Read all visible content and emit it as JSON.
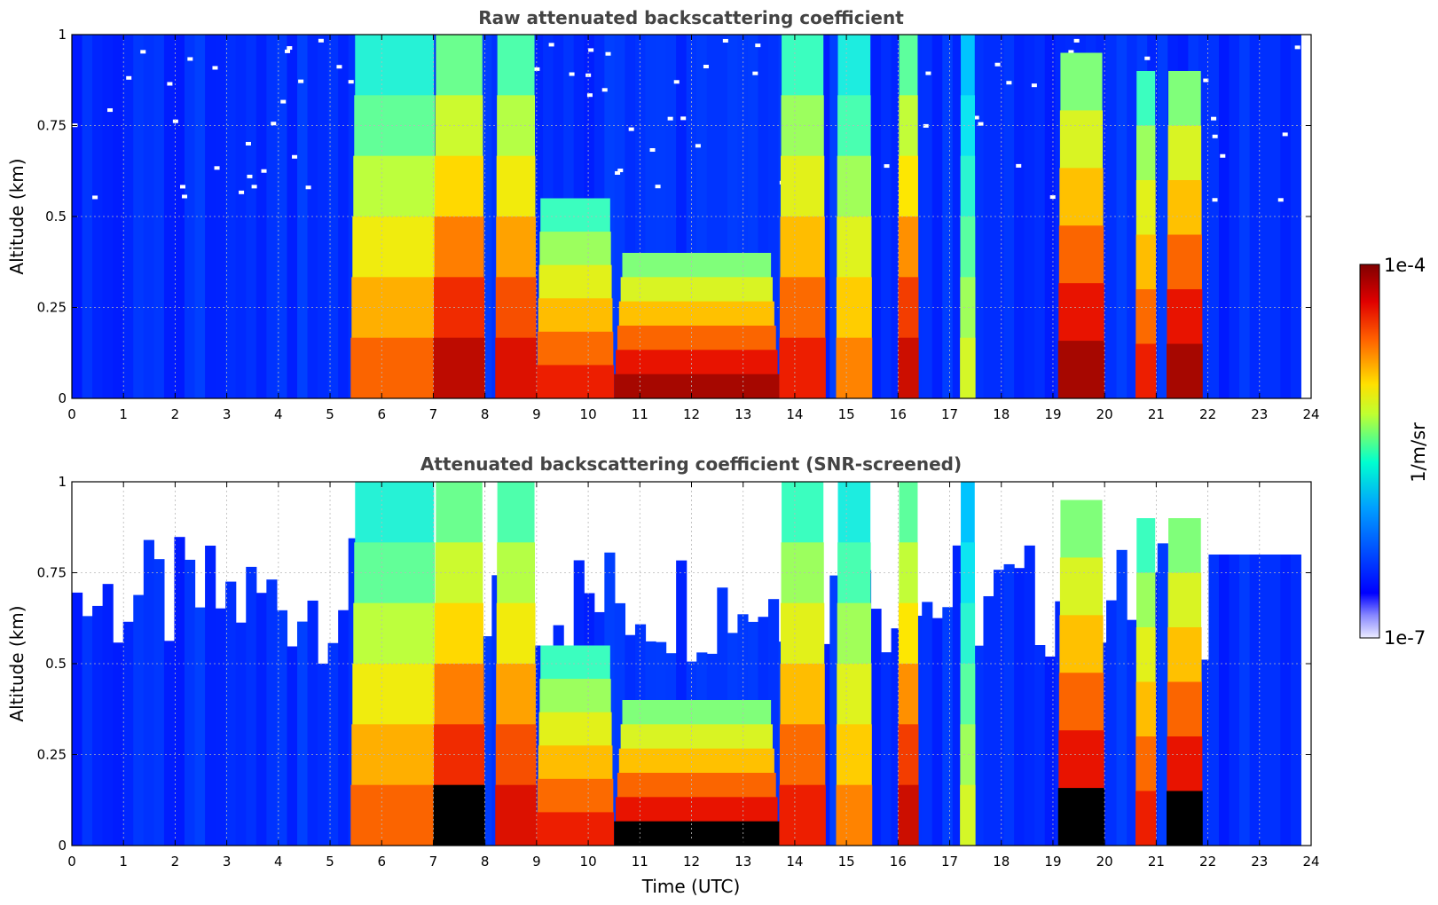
{
  "chart_data": [
    {
      "type": "heatmap",
      "title": "Raw attenuated backscattering coefficient",
      "xlabel": "",
      "ylabel": "Altitude (km)",
      "xlim": [
        0,
        24
      ],
      "ylim": [
        0,
        1
      ],
      "x_ticks": [
        "0",
        "1",
        "2",
        "3",
        "4",
        "5",
        "6",
        "7",
        "8",
        "9",
        "10",
        "11",
        "12",
        "13",
        "14",
        "15",
        "16",
        "17",
        "18",
        "19",
        "20",
        "21",
        "22",
        "23",
        "24"
      ],
      "y_ticks": [
        "0",
        "0.25",
        "0.5",
        "0.75",
        "1"
      ],
      "grid": true,
      "colorscale": "jet",
      "scale": "log",
      "screened": false,
      "data_end_hour": 23.8,
      "features": [
        {
          "description": "fog / low cloud",
          "start": 5.4,
          "end": 7.1,
          "top": 1.0,
          "intensity": 0.78
        },
        {
          "description": "precipitation",
          "start": 7.0,
          "end": 8.0,
          "top": 1.0,
          "intensity": 0.92
        },
        {
          "description": "precipitation",
          "start": 8.2,
          "end": 9.0,
          "top": 1.0,
          "intensity": 0.88
        },
        {
          "description": "low cloud",
          "start": 9.0,
          "end": 10.5,
          "top": 0.55,
          "intensity": 0.85
        },
        {
          "description": "low cloud",
          "start": 10.5,
          "end": 13.7,
          "top": 0.4,
          "intensity": 0.95
        },
        {
          "description": "precipitation",
          "start": 13.7,
          "end": 14.6,
          "top": 1.0,
          "intensity": 0.85
        },
        {
          "description": "cloud",
          "start": 14.8,
          "end": 15.5,
          "top": 1.0,
          "intensity": 0.75
        },
        {
          "description": "precipitation",
          "start": 16.0,
          "end": 16.4,
          "top": 1.0,
          "intensity": 0.9
        },
        {
          "description": "precipitation",
          "start": 17.2,
          "end": 17.5,
          "top": 1.0,
          "intensity": 0.6
        },
        {
          "description": "cloud",
          "start": 19.1,
          "end": 20.0,
          "top": 0.95,
          "intensity": 0.95
        },
        {
          "description": "cloud",
          "start": 20.6,
          "end": 21.0,
          "top": 0.9,
          "intensity": 0.85
        },
        {
          "description": "cloud",
          "start": 21.2,
          "end": 21.9,
          "top": 0.9,
          "intensity": 0.95
        }
      ]
    },
    {
      "type": "heatmap",
      "title": "Attenuated backscattering coefficient (SNR-screened)",
      "xlabel": "Time (UTC)",
      "ylabel": "Altitude (km)",
      "xlim": [
        0,
        24
      ],
      "ylim": [
        0,
        1
      ],
      "x_ticks": [
        "0",
        "1",
        "2",
        "3",
        "4",
        "5",
        "6",
        "7",
        "8",
        "9",
        "10",
        "11",
        "12",
        "13",
        "14",
        "15",
        "16",
        "17",
        "18",
        "19",
        "20",
        "21",
        "22",
        "23",
        "24"
      ],
      "y_ticks": [
        "0",
        "0.25",
        "0.5",
        "0.75",
        "1"
      ],
      "grid": true,
      "colorscale": "jet",
      "scale": "log",
      "screened": true,
      "data_end_hour": 23.8,
      "saturated_color": "#000000",
      "features": [
        {
          "description": "fog / low cloud",
          "start": 5.4,
          "end": 7.1,
          "top": 1.0,
          "intensity": 0.78
        },
        {
          "description": "precipitation",
          "start": 7.0,
          "end": 8.0,
          "top": 1.0,
          "intensity": 0.92
        },
        {
          "description": "precipitation",
          "start": 8.2,
          "end": 9.0,
          "top": 1.0,
          "intensity": 0.88
        },
        {
          "description": "low cloud",
          "start": 9.0,
          "end": 10.5,
          "top": 0.55,
          "intensity": 0.85
        },
        {
          "description": "low cloud",
          "start": 10.5,
          "end": 13.7,
          "top": 0.4,
          "intensity": 0.95
        },
        {
          "description": "precipitation",
          "start": 13.7,
          "end": 14.6,
          "top": 1.0,
          "intensity": 0.85
        },
        {
          "description": "cloud",
          "start": 14.8,
          "end": 15.5,
          "top": 1.0,
          "intensity": 0.75
        },
        {
          "description": "precipitation",
          "start": 16.0,
          "end": 16.4,
          "top": 1.0,
          "intensity": 0.9
        },
        {
          "description": "precipitation",
          "start": 17.2,
          "end": 17.5,
          "top": 1.0,
          "intensity": 0.6
        },
        {
          "description": "cloud",
          "start": 19.1,
          "end": 20.0,
          "top": 0.95,
          "intensity": 0.95
        },
        {
          "description": "cloud",
          "start": 20.6,
          "end": 21.0,
          "top": 0.9,
          "intensity": 0.85
        },
        {
          "description": "cloud",
          "start": 21.2,
          "end": 21.9,
          "top": 0.9,
          "intensity": 0.95
        }
      ]
    }
  ],
  "colorbar": {
    "label": "1/m/sr",
    "max_label": "1e-4",
    "min_label": "1e-7",
    "colormap": "jet"
  }
}
